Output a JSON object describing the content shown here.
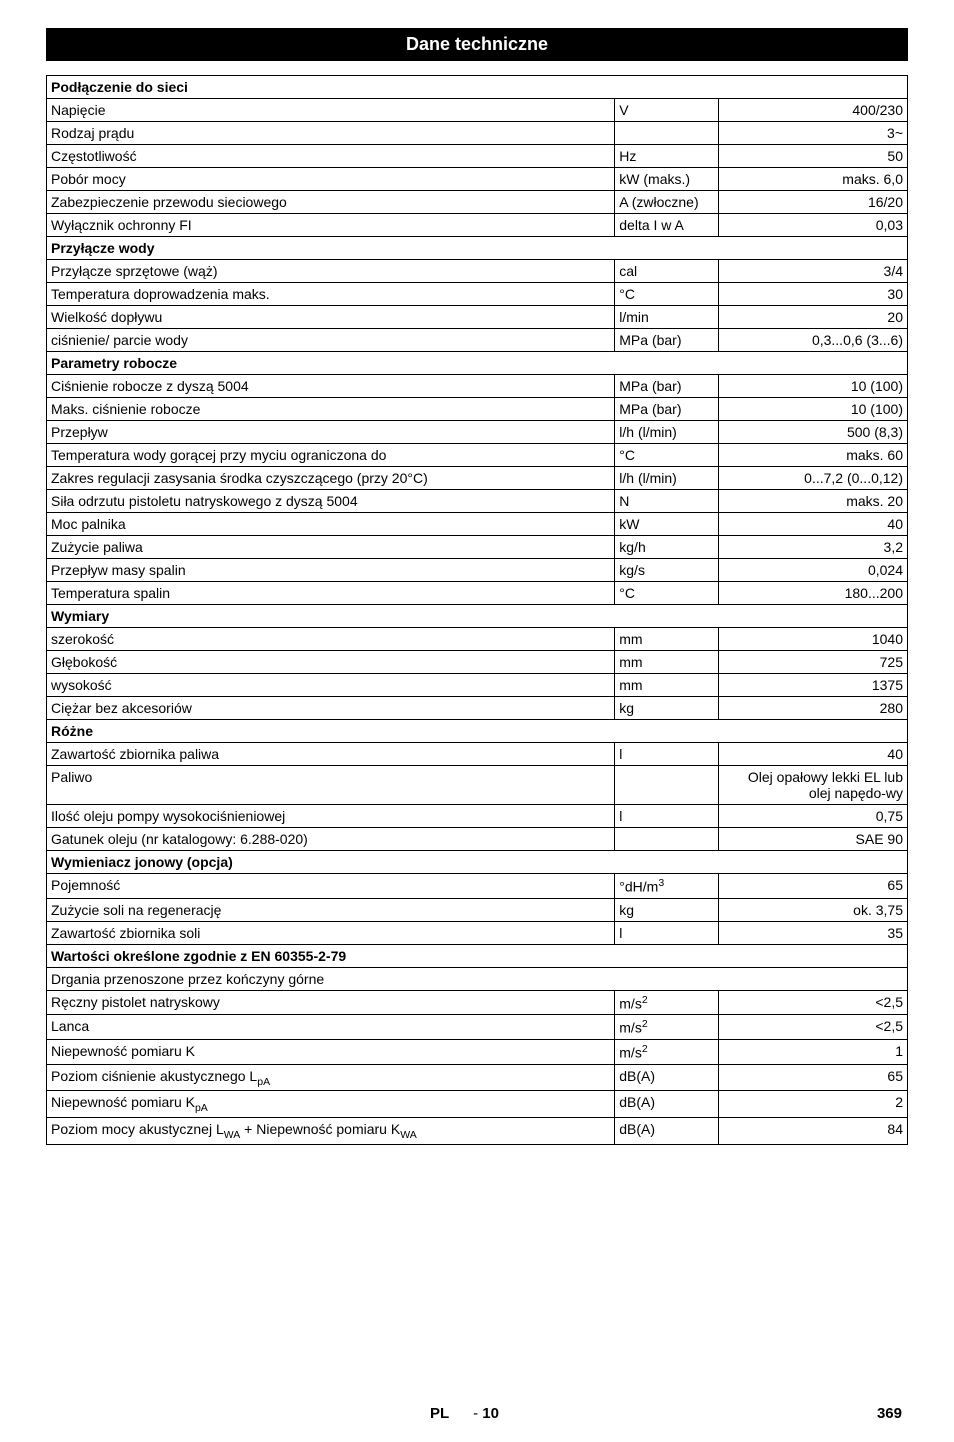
{
  "title": "Dane techniczne",
  "footer": {
    "lang": "PL",
    "page_dash": "- ",
    "page_num": "10",
    "right_num": "369"
  },
  "sections": [
    {
      "header": "Podłączenie do sieci",
      "rows": [
        {
          "label": "Napięcie",
          "unit": "V",
          "val": "400/230"
        },
        {
          "label": "Rodzaj prądu",
          "unit": "",
          "val": "3~"
        },
        {
          "label": "Częstotliwość",
          "unit": "Hz",
          "val": "50"
        },
        {
          "label": "Pobór mocy",
          "unit": "kW (maks.)",
          "val": "maks. 6,0"
        },
        {
          "label": "Zabezpieczenie przewodu sieciowego",
          "unit": "A (zwłoczne)",
          "val": "16/20"
        },
        {
          "label": "Wyłącznik ochronny FI",
          "unit": "delta I w A",
          "val": "0,03"
        }
      ]
    },
    {
      "header": "Przyłącze wody",
      "rows": [
        {
          "label": "Przyłącze sprzętowe (wąż)",
          "unit": "cal",
          "val": "3/4"
        },
        {
          "label": "Temperatura doprowadzenia maks.",
          "unit": "°C",
          "val": "30"
        },
        {
          "label": "Wielkość dopływu",
          "unit": "l/min",
          "val": "20"
        },
        {
          "label": "ciśnienie/ parcie wody",
          "unit": "MPa (bar)",
          "val": "0,3...0,6 (3...6)"
        }
      ]
    },
    {
      "header": "Parametry robocze",
      "rows": [
        {
          "label": "Ciśnienie robocze z dyszą 5004",
          "unit": "MPa (bar)",
          "val": "10 (100)"
        },
        {
          "label": "Maks. ciśnienie robocze",
          "unit": "MPa (bar)",
          "val": "10 (100)"
        },
        {
          "label": "Przepływ",
          "unit": "l/h (l/min)",
          "val": "500 (8,3)"
        },
        {
          "label": "Temperatura wody gorącej przy myciu ograniczona do",
          "unit": "°C",
          "val": "maks. 60"
        },
        {
          "label": "Zakres regulacji zasysania środka czyszczącego (przy 20°C)",
          "unit": "l/h (l/min)",
          "val": "0...7,2 (0...0,12)"
        },
        {
          "label": "Siła odrzutu pistoletu natryskowego z dyszą 5004",
          "unit": "N",
          "val": "maks. 20"
        },
        {
          "label": "Moc palnika",
          "unit": "kW",
          "val": "40"
        },
        {
          "label": "Zużycie paliwa",
          "unit": "kg/h",
          "val": "3,2"
        },
        {
          "label": "Przepływ masy spalin",
          "unit": "kg/s",
          "val": "0,024"
        },
        {
          "label": "Temperatura spalin",
          "unit": "°C",
          "val": "180...200"
        }
      ]
    },
    {
      "header": "Wymiary",
      "rows": [
        {
          "label": "szerokość",
          "unit": "mm",
          "val": "1040"
        },
        {
          "label": "Głębokość",
          "unit": "mm",
          "val": "725"
        },
        {
          "label": "wysokość",
          "unit": "mm",
          "val": "1375"
        },
        {
          "label": "Ciężar bez akcesoriów",
          "unit": "kg",
          "val": "280"
        }
      ]
    },
    {
      "header": "Różne",
      "rows": [
        {
          "label": "Zawartość zbiornika paliwa",
          "unit": "l",
          "val": "40"
        },
        {
          "label": "Paliwo",
          "unit": "",
          "val": "Olej opałowy lekki EL lub olej napędo-wy"
        },
        {
          "label": "Ilość oleju pompy wysokociśnieniowej",
          "unit": "l",
          "val": "0,75"
        },
        {
          "label": "Gatunek oleju (nr katalogowy: 6.288-020)",
          "unit": "",
          "val": "SAE 90"
        }
      ]
    },
    {
      "header": "Wymieniacz jonowy (opcja)",
      "rows": [
        {
          "label": "Pojemność",
          "unit_html": "°dH/m<sup>3</sup>",
          "val": "65"
        },
        {
          "label": "Zużycie soli na regenerację",
          "unit": "kg",
          "val": "ok. 3,75"
        },
        {
          "label": "Zawartość zbiornika soli",
          "unit": "l",
          "val": "35"
        }
      ]
    },
    {
      "header": "Wartości określone zgodnie z EN 60355-2-79",
      "subheader": "Drgania przenoszone przez kończyny górne",
      "rows": [
        {
          "label": "Ręczny pistolet natryskowy",
          "unit_html": "m/s<sup>2</sup>",
          "val": "<2,5"
        },
        {
          "label": "Lanca",
          "unit_html": "m/s<sup>2</sup>",
          "val": "<2,5"
        },
        {
          "label": "Niepewność pomiaru K",
          "unit_html": "m/s<sup>2</sup>",
          "val": "1"
        },
        {
          "label_html": "Poziom ciśnienie akustycznego L<sub>pA</sub>",
          "unit": "dB(A)",
          "val": "65"
        },
        {
          "label_html": "Niepewność pomiaru K<sub>pA</sub>",
          "unit": "dB(A)",
          "val": "2"
        },
        {
          "label_html": "Poziom mocy akustycznej L<sub>WA</sub> + Niepewność pomiaru K<sub>WA</sub>",
          "unit": "dB(A)",
          "val": "84"
        }
      ]
    }
  ]
}
